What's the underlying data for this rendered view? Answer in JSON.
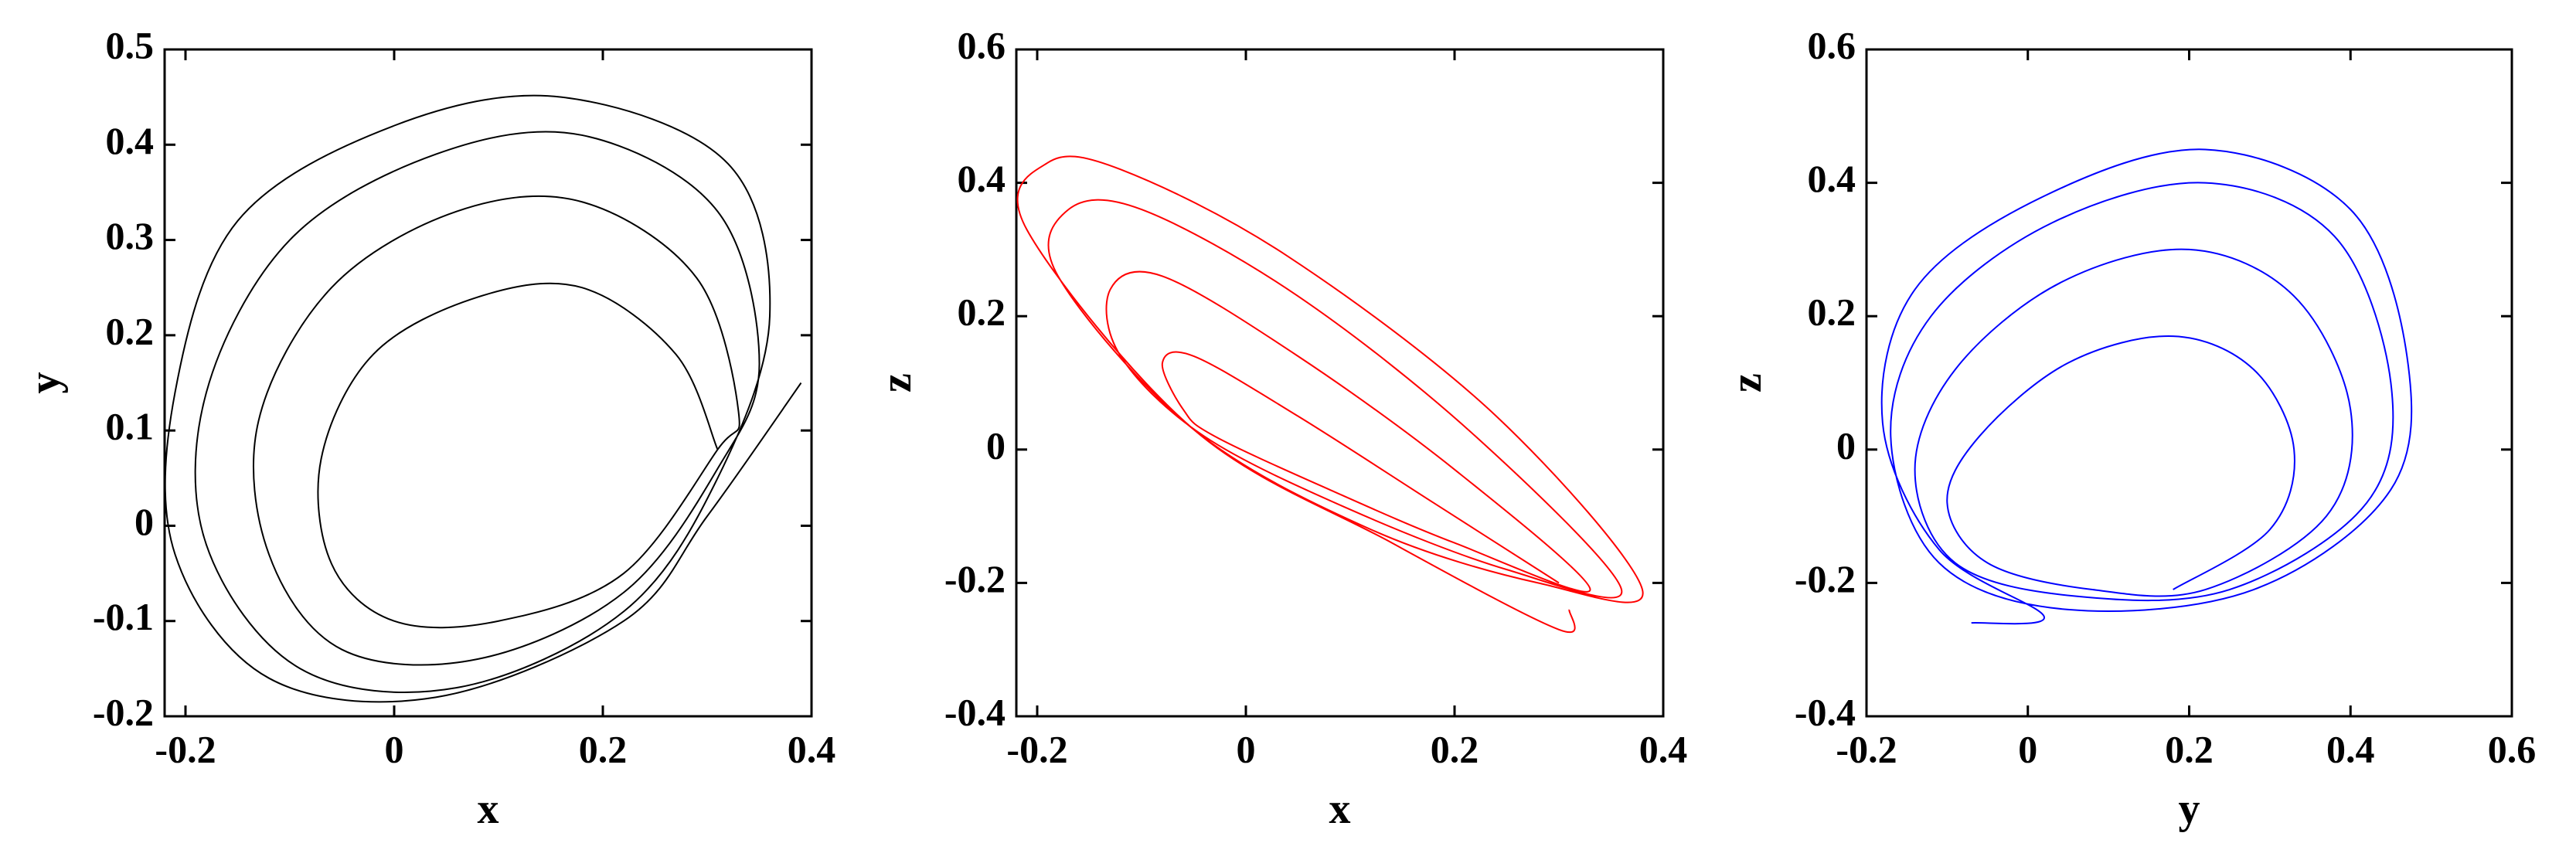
{
  "chart_data": [
    {
      "type": "line",
      "color": "#000000",
      "xlabel": "x",
      "ylabel": "y",
      "xlim": [
        -0.22,
        0.4
      ],
      "xticks": [
        -0.2,
        0,
        0.2,
        0.4
      ],
      "ylim": [
        -0.2,
        0.5
      ],
      "yticks": [
        -0.2,
        -0.1,
        0,
        0.1,
        0.2,
        0.3,
        0.4,
        0.5
      ],
      "x": [
        0.31,
        0.27,
        0.18,
        0.08,
        -0.02,
        -0.07,
        -0.06,
        0.0,
        0.1,
        0.22,
        0.31,
        0.33,
        0.29,
        0.18,
        0.06,
        -0.06,
        -0.13,
        -0.12,
        -0.05,
        0.08,
        0.22,
        0.31,
        0.35,
        0.31,
        0.18,
        0.04,
        -0.1,
        -0.18,
        -0.18,
        -0.09,
        0.06,
        0.22,
        0.31,
        0.36,
        0.32,
        0.16,
        0.0,
        -0.15,
        -0.21,
        -0.21,
        -0.12,
        0.04,
        0.22,
        0.3,
        0.39
      ],
      "values": [
        0.08,
        0.18,
        0.25,
        0.24,
        0.18,
        0.07,
        -0.04,
        -0.1,
        -0.1,
        -0.05,
        0.08,
        0.12,
        0.26,
        0.34,
        0.33,
        0.25,
        0.11,
        -0.03,
        -0.13,
        -0.14,
        -0.07,
        0.06,
        0.17,
        0.33,
        0.41,
        0.39,
        0.3,
        0.14,
        -0.02,
        -0.15,
        -0.17,
        -0.09,
        0.05,
        0.22,
        0.38,
        0.45,
        0.42,
        0.32,
        0.14,
        -0.03,
        -0.16,
        -0.18,
        -0.1,
        0.01,
        0.15
      ]
    },
    {
      "type": "line",
      "color": "#ff0000",
      "xlabel": "x",
      "ylabel": "z",
      "xlim": [
        -0.22,
        0.4
      ],
      "xticks": [
        -0.2,
        0,
        0.2,
        0.4
      ],
      "ylim": [
        -0.4,
        0.6
      ],
      "yticks": [
        -0.4,
        -0.2,
        0,
        0.2,
        0.4,
        0.6
      ],
      "x": [
        0.3,
        0.18,
        0.05,
        -0.05,
        -0.08,
        -0.06,
        -0.03,
        0.08,
        0.2,
        0.33,
        0.2,
        0.05,
        -0.08,
        -0.13,
        -0.12,
        -0.04,
        0.1,
        0.25,
        0.36,
        0.22,
        0.05,
        -0.1,
        -0.17,
        -0.18,
        -0.05,
        0.12,
        0.28,
        0.38,
        0.24,
        0.04,
        -0.12,
        -0.19,
        -0.21,
        -0.05,
        0.14,
        0.3,
        0.31
      ],
      "values": [
        -0.2,
        -0.08,
        0.05,
        0.14,
        0.13,
        0.06,
        0.02,
        -0.06,
        -0.14,
        -0.21,
        -0.03,
        0.14,
        0.26,
        0.24,
        0.14,
        0.02,
        -0.09,
        -0.18,
        -0.21,
        0.02,
        0.23,
        0.36,
        0.36,
        0.26,
        0.03,
        -0.12,
        -0.2,
        -0.21,
        0.05,
        0.29,
        0.42,
        0.43,
        0.33,
        0.03,
        -0.14,
        -0.27,
        -0.24
      ]
    },
    {
      "type": "line",
      "color": "#0000ff",
      "xlabel": "y",
      "ylabel": "z",
      "xlim": [
        -0.2,
        0.6
      ],
      "xticks": [
        -0.2,
        0,
        0.2,
        0.4,
        0.6
      ],
      "ylim": [
        -0.4,
        0.6
      ],
      "yticks": [
        -0.4,
        -0.2,
        0,
        0.2,
        0.4,
        0.6
      ],
      "x": [
        0.18,
        0.3,
        0.33,
        0.28,
        0.18,
        0.05,
        -0.06,
        -0.1,
        -0.05,
        0.08,
        0.22,
        0.37,
        0.4,
        0.33,
        0.2,
        0.04,
        -0.09,
        -0.14,
        -0.09,
        0.06,
        0.25,
        0.42,
        0.45,
        0.38,
        0.22,
        0.03,
        -0.12,
        -0.17,
        -0.11,
        0.05,
        0.28,
        0.45,
        0.47,
        0.4,
        0.22,
        0.02,
        -0.14,
        -0.18,
        -0.11,
        0.02,
        -0.07
      ],
      "values": [
        -0.21,
        -0.12,
        0.0,
        0.12,
        0.17,
        0.13,
        0.02,
        -0.08,
        -0.17,
        -0.21,
        -0.21,
        -0.1,
        0.06,
        0.23,
        0.3,
        0.25,
        0.12,
        -0.03,
        -0.17,
        -0.22,
        -0.21,
        -0.08,
        0.1,
        0.32,
        0.4,
        0.34,
        0.2,
        0.02,
        -0.17,
        -0.24,
        -0.21,
        -0.06,
        0.14,
        0.36,
        0.45,
        0.38,
        0.24,
        0.04,
        -0.15,
        -0.25,
        -0.26
      ]
    }
  ]
}
